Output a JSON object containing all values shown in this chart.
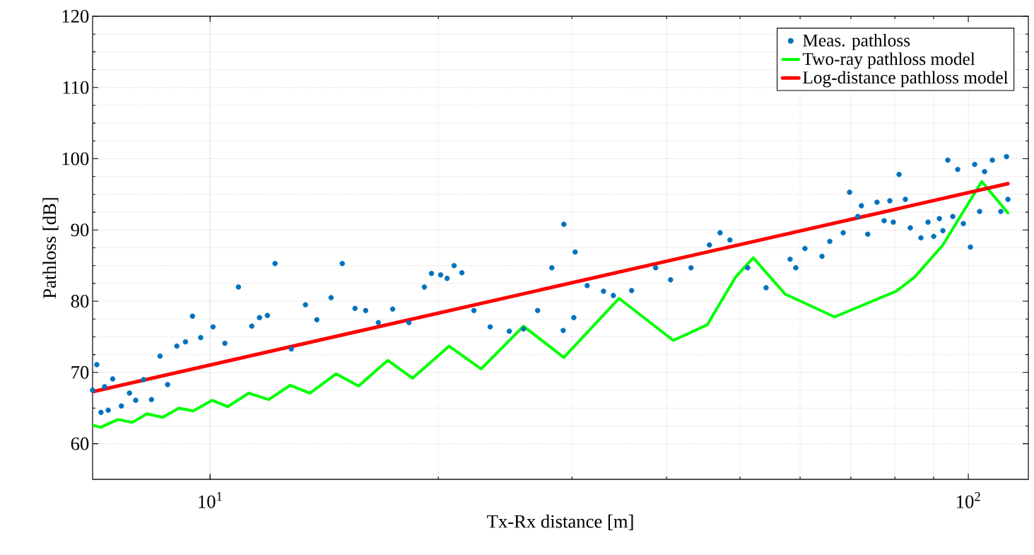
{
  "chart_data": {
    "type": "line",
    "xlabel": "Tx-Rx distance [m]",
    "ylabel": "Pathloss [dB]",
    "log": "x",
    "xlim": [
      7,
      120
    ],
    "ylim": [
      55,
      120
    ],
    "xticks": [
      {
        "value": 10,
        "label": "10$^{1}$"
      },
      {
        "value": 100,
        "label": "10$^{2}$"
      }
    ],
    "yticks": [
      60,
      70,
      80,
      90,
      100,
      110,
      120
    ],
    "grid": true,
    "legend": "top right",
    "line_style": "solid",
    "series": [
      {
        "name": "Meas. pathloss",
        "type": "scatter",
        "color": "#0072bd",
        "x": [
          7.0,
          7.09,
          7.18,
          7.26,
          7.34,
          7.44,
          7.64,
          7.83,
          7.98,
          8.17,
          8.37,
          8.59,
          8.79,
          9.04,
          9.28,
          9.48,
          9.72,
          10.09,
          10.46,
          10.9,
          11.35,
          11.62,
          11.9,
          12.18,
          12.8,
          13.36,
          13.83,
          14.44,
          14.94,
          15.53,
          16.04,
          16.67,
          17.41,
          18.29,
          19.17,
          19.59,
          20.14,
          20.54,
          20.98,
          21.48,
          22.28,
          23.41,
          24.81,
          25.9,
          27.04,
          28.23,
          29.28,
          29.22,
          30.18,
          30.3,
          31.43,
          33.03,
          34.03,
          35.97,
          38.7,
          40.49,
          43.08,
          45.56,
          47.05,
          48.49,
          51.17,
          54.11,
          58.21,
          59.22,
          60.89,
          64.12,
          65.66,
          68.39,
          69.73,
          71.51,
          72.28,
          73.69,
          75.79,
          77.45,
          78.8,
          79.64,
          81.03,
          82.6,
          83.85,
          86.6,
          88.49,
          90.03,
          91.59,
          92.57,
          93.96,
          95.39,
          96.83,
          98.51,
          100.64,
          101.95,
          103.49,
          105.07,
          107.57,
          110.37,
          112.29,
          112.78
        ],
        "values": [
          67.5,
          71.1,
          64.4,
          68.0,
          64.7,
          69.1,
          65.3,
          67.1,
          66.1,
          69.0,
          66.2,
          72.3,
          68.3,
          73.7,
          74.3,
          77.9,
          74.9,
          76.4,
          74.1,
          82.0,
          76.5,
          77.7,
          78.0,
          85.3,
          73.3,
          79.5,
          77.4,
          80.5,
          85.3,
          79.0,
          78.7,
          77.0,
          78.9,
          77.0,
          82.0,
          83.9,
          83.7,
          83.2,
          85.0,
          84.0,
          78.7,
          76.4,
          75.8,
          76.1,
          78.7,
          84.7,
          90.8,
          75.9,
          77.7,
          86.9,
          82.2,
          81.4,
          80.8,
          81.5,
          84.7,
          83.0,
          84.7,
          87.9,
          89.6,
          88.6,
          84.7,
          81.9,
          85.9,
          84.7,
          87.4,
          86.3,
          88.4,
          89.6,
          95.3,
          91.9,
          93.4,
          89.4,
          93.9,
          91.3,
          94.1,
          91.1,
          97.8,
          94.3,
          90.3,
          88.9,
          91.1,
          89.1,
          91.6,
          89.9,
          99.8,
          91.9,
          98.5,
          90.9,
          87.6,
          99.2,
          92.6,
          98.2,
          99.8,
          92.6,
          100.3,
          94.3
        ]
      },
      {
        "name": "Two-ray pathloss model",
        "color": "#00ff00",
        "x": [
          7.0,
          7.17,
          7.56,
          7.9,
          8.26,
          8.66,
          9.1,
          9.5,
          10.06,
          10.55,
          11.25,
          11.95,
          12.75,
          13.54,
          14.66,
          15.7,
          17.15,
          18.49,
          20.67,
          22.77,
          25.9,
          29.28,
          34.62,
          40.83,
          45.27,
          49.33,
          52.05,
          57.34,
          66.64,
          80.33,
          84.96,
          92.57,
          104.16,
          112.78
        ],
        "values": [
          62.6,
          62.3,
          63.4,
          63.0,
          64.2,
          63.7,
          65.0,
          64.6,
          66.1,
          65.2,
          67.1,
          66.2,
          68.2,
          67.1,
          69.8,
          68.1,
          71.7,
          69.2,
          73.7,
          70.5,
          76.5,
          72.1,
          80.4,
          74.5,
          76.7,
          83.4,
          86.1,
          81.0,
          77.8,
          81.4,
          83.4,
          87.9,
          96.8,
          92.4
        ]
      },
      {
        "name": "Log-distance pathloss model",
        "color": "#ff0000",
        "x": [
          7.0,
          112.78
        ],
        "values": [
          67.3,
          96.5
        ]
      }
    ]
  }
}
